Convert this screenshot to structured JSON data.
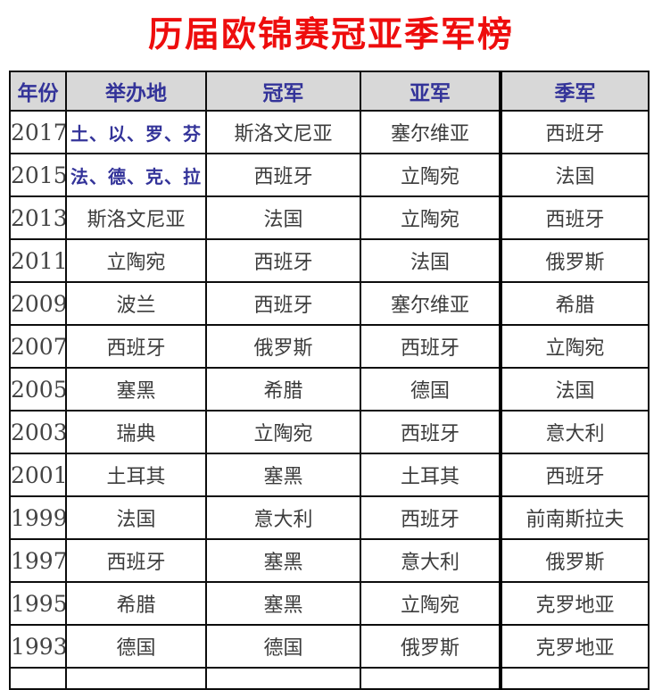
{
  "title": "历届欧锦赛冠亚季军榜",
  "colors": {
    "title_red": "#ee0d0d",
    "header_blue": "#333399",
    "header_bg_gray": "#d8d8d8",
    "cell_text": "#3c3c3c",
    "border_black": "#000000"
  },
  "table": {
    "headers": [
      "年份",
      "举办地",
      "冠军",
      "亚军",
      "季军"
    ],
    "rows": [
      {
        "year": "2017",
        "host": "土、以、罗、芬",
        "host_highlight": true,
        "champion": "斯洛文尼亚",
        "runner_up": "塞尔维亚",
        "third": "西班牙"
      },
      {
        "year": "2015",
        "host": "法、德、克、拉",
        "host_highlight": true,
        "champion": "西班牙",
        "runner_up": "立陶宛",
        "third": "法国"
      },
      {
        "year": "2013",
        "host": "斯洛文尼亚",
        "host_highlight": false,
        "champion": "法国",
        "runner_up": "立陶宛",
        "third": "西班牙"
      },
      {
        "year": "2011",
        "host": "立陶宛",
        "host_highlight": false,
        "champion": "西班牙",
        "runner_up": "法国",
        "third": "俄罗斯"
      },
      {
        "year": "2009",
        "host": "波兰",
        "host_highlight": false,
        "champion": "西班牙",
        "runner_up": "塞尔维亚",
        "third": "希腊"
      },
      {
        "year": "2007",
        "host": "西班牙",
        "host_highlight": false,
        "champion": "俄罗斯",
        "runner_up": "西班牙",
        "third": "立陶宛"
      },
      {
        "year": "2005",
        "host": "塞黑",
        "host_highlight": false,
        "champion": "希腊",
        "runner_up": "德国",
        "third": "法国"
      },
      {
        "year": "2003",
        "host": "瑞典",
        "host_highlight": false,
        "champion": "立陶宛",
        "runner_up": "西班牙",
        "third": "意大利"
      },
      {
        "year": "2001",
        "host": "土耳其",
        "host_highlight": false,
        "champion": "塞黑",
        "runner_up": "土耳其",
        "third": "西班牙"
      },
      {
        "year": "1999",
        "host": "法国",
        "host_highlight": false,
        "champion": "意大利",
        "runner_up": "西班牙",
        "third": "前南斯拉夫"
      },
      {
        "year": "1997",
        "host": "西班牙",
        "host_highlight": false,
        "champion": "塞黑",
        "runner_up": "意大利",
        "third": "俄罗斯"
      },
      {
        "year": "1995",
        "host": "希腊",
        "host_highlight": false,
        "champion": "塞黑",
        "runner_up": "立陶宛",
        "third": "克罗地亚"
      },
      {
        "year": "1993",
        "host": "德国",
        "host_highlight": false,
        "champion": "德国",
        "runner_up": "俄罗斯",
        "third": "克罗地亚"
      }
    ]
  }
}
